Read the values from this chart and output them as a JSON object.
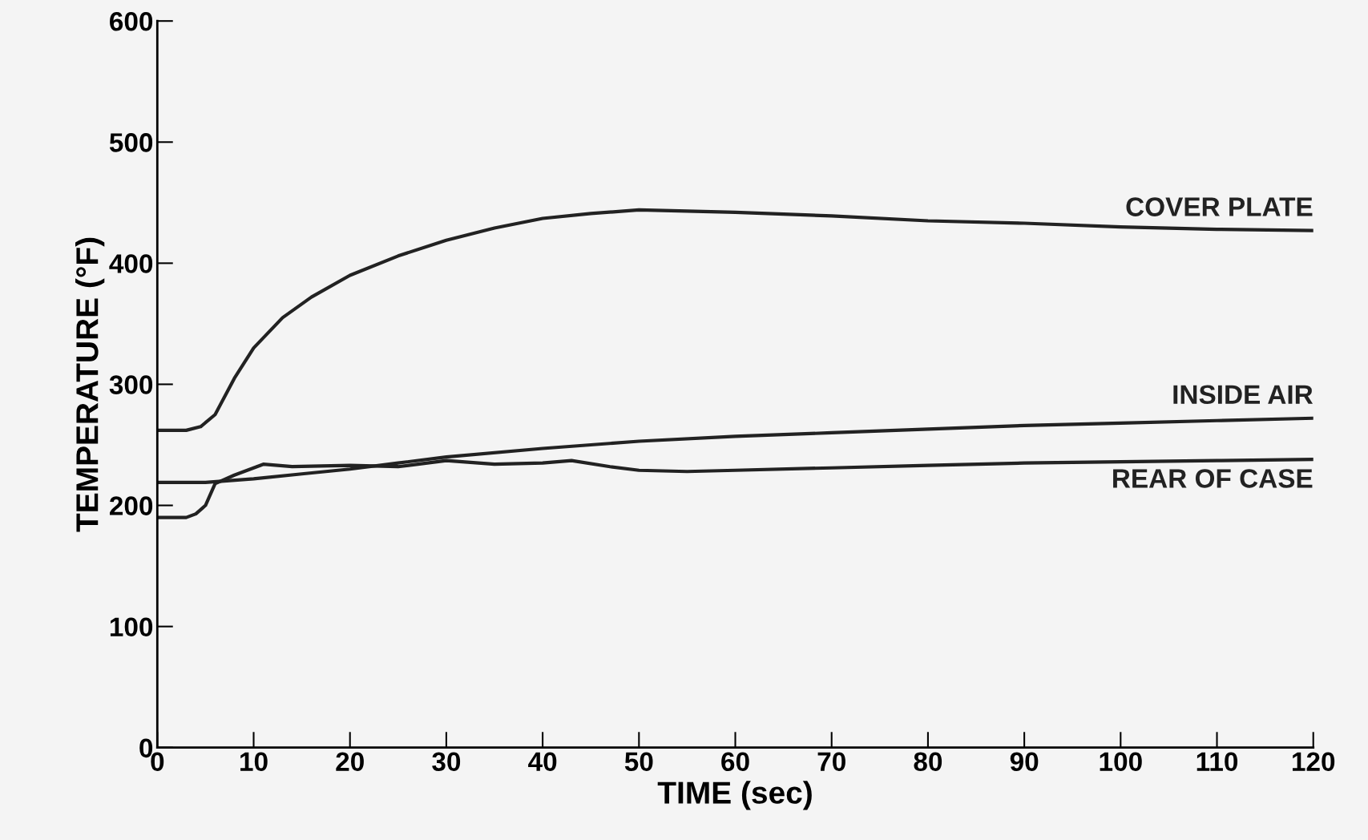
{
  "chart_data": {
    "type": "line",
    "xlabel": "TIME (sec)",
    "ylabel": "TEMPERATURE (°F)",
    "xlim": [
      0,
      120
    ],
    "ylim": [
      0,
      600
    ],
    "xticks": [
      0,
      10,
      20,
      30,
      40,
      50,
      60,
      70,
      80,
      90,
      100,
      110,
      120
    ],
    "yticks": [
      0,
      100,
      200,
      300,
      400,
      500,
      600
    ],
    "grid": false,
    "legend": false,
    "marker": "none",
    "line_style": "solid",
    "series": [
      {
        "name": "COVER PLATE",
        "color": "#222222",
        "x": [
          0,
          3,
          4.5,
          6,
          8,
          10,
          13,
          16,
          20,
          25,
          30,
          35,
          40,
          45,
          50,
          55,
          60,
          70,
          80,
          90,
          100,
          110,
          120
        ],
        "values": [
          262,
          262,
          265,
          275,
          305,
          330,
          355,
          372,
          390,
          406,
          419,
          429,
          437,
          441,
          444,
          443,
          442,
          439,
          435,
          433,
          430,
          428,
          427
        ]
      },
      {
        "name": "INSIDE AIR",
        "color": "#222222",
        "x": [
          0,
          5,
          10,
          15,
          20,
          25,
          30,
          40,
          50,
          60,
          70,
          80,
          90,
          100,
          110,
          120
        ],
        "values": [
          219,
          219,
          222,
          226,
          230,
          235,
          240,
          247,
          253,
          257,
          260,
          263,
          266,
          268,
          270,
          272
        ]
      },
      {
        "name": "REAR OF CASE",
        "color": "#222222",
        "x": [
          0,
          3,
          4,
          5,
          6,
          8,
          11,
          14,
          20,
          25,
          30,
          35,
          40,
          43,
          47,
          50,
          55,
          60,
          70,
          80,
          90,
          100,
          110,
          120
        ],
        "values": [
          190,
          190,
          193,
          200,
          218,
          225,
          234,
          232,
          233,
          232,
          237,
          234,
          235,
          237,
          232,
          229,
          228,
          229,
          231,
          233,
          235,
          236,
          237,
          238
        ]
      }
    ]
  }
}
